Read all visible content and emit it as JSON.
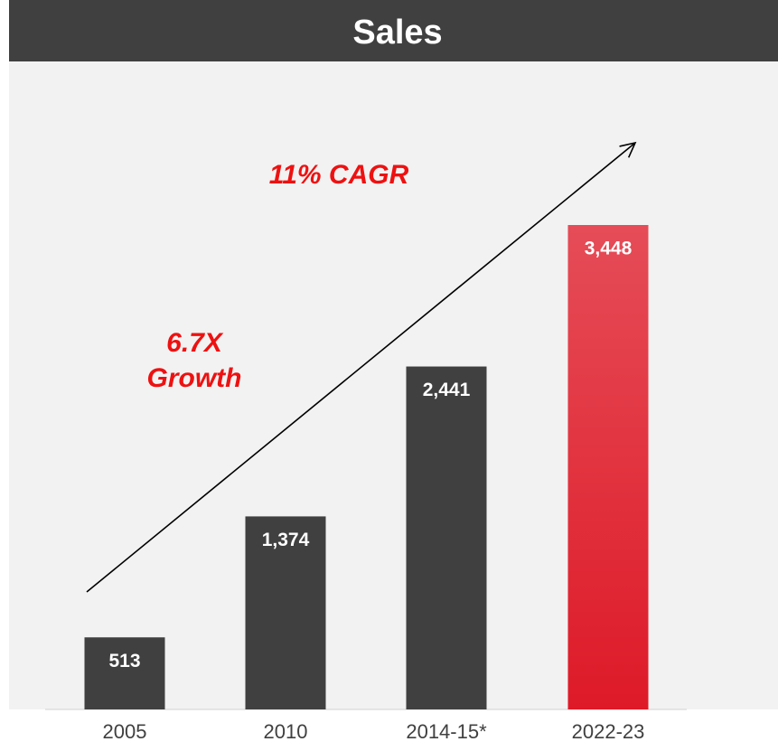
{
  "chart_data": {
    "type": "bar",
    "title": "Sales",
    "categories": [
      "2005",
      "2010",
      "2014-15*",
      "2022-23"
    ],
    "values": [
      513,
      1374,
      2441,
      3448
    ],
    "value_labels": [
      "513",
      "1,374",
      "2,441",
      "3,448"
    ],
    "colors": [
      "#404040",
      "#404040",
      "#404040",
      "#de1a28"
    ],
    "annotations": [
      "11% CAGR"
    ],
    "growth_note": [
      "6.7X",
      "Growth"
    ]
  }
}
